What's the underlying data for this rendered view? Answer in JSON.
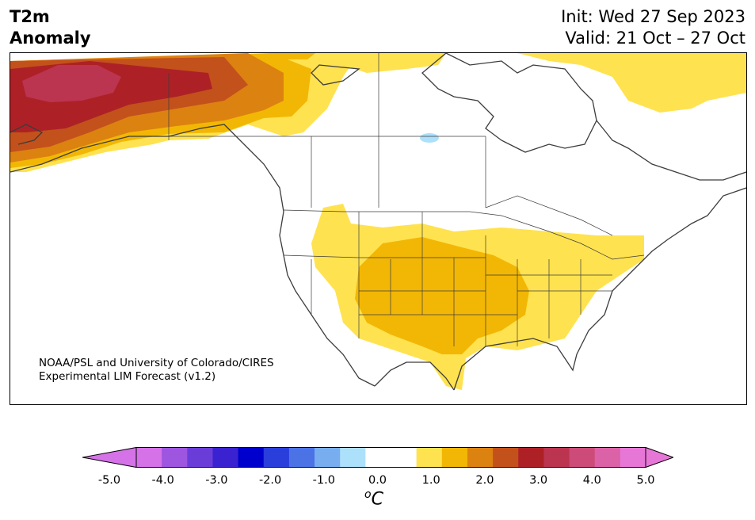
{
  "title": {
    "line1": "T2m",
    "line2": "Anomaly",
    "init": "Init: Wed 27 Sep 2023",
    "valid": "Valid: 21 Oct – 27 Oct"
  },
  "credit": {
    "line1": "NOAA/PSL and University of Colorado/CIRES",
    "line2": "Experimental LIM Forecast (v1.2)"
  },
  "colorbar": {
    "unit_sup": "o",
    "unit_main": "C",
    "ticks": [
      "-5.0",
      "-4.0",
      "-3.0",
      "-2.0",
      "-1.0",
      "0.0",
      "1.0",
      "2.0",
      "3.0",
      "4.0",
      "5.0"
    ],
    "colors": [
      "#d572e8",
      "#9e55e0",
      "#6a3dd9",
      "#3a22d0",
      "#0000cc",
      "#2a3edb",
      "#4b73e6",
      "#78aef0",
      "#ade0fa",
      "#ffffff",
      "#ffffff",
      "#ffe24f",
      "#f2b705",
      "#dc8211",
      "#c3511b",
      "#ad2126",
      "#bb3450",
      "#cc4b78",
      "#dc62a7",
      "#e777d6"
    ],
    "under_color": "#d572e8",
    "over_color": "#e777d6"
  },
  "map": {
    "colors": {
      "anom_0_5": "#ffe24f",
      "anom_1_0": "#f2b705",
      "anom_1_5": "#dc8211",
      "anom_2_0": "#c3511b",
      "anom_2_5": "#ad2126",
      "anom_3_0": "#bb3450",
      "anom_neg_1": "#ade0fa",
      "coast": "#3c3c3c"
    }
  }
}
